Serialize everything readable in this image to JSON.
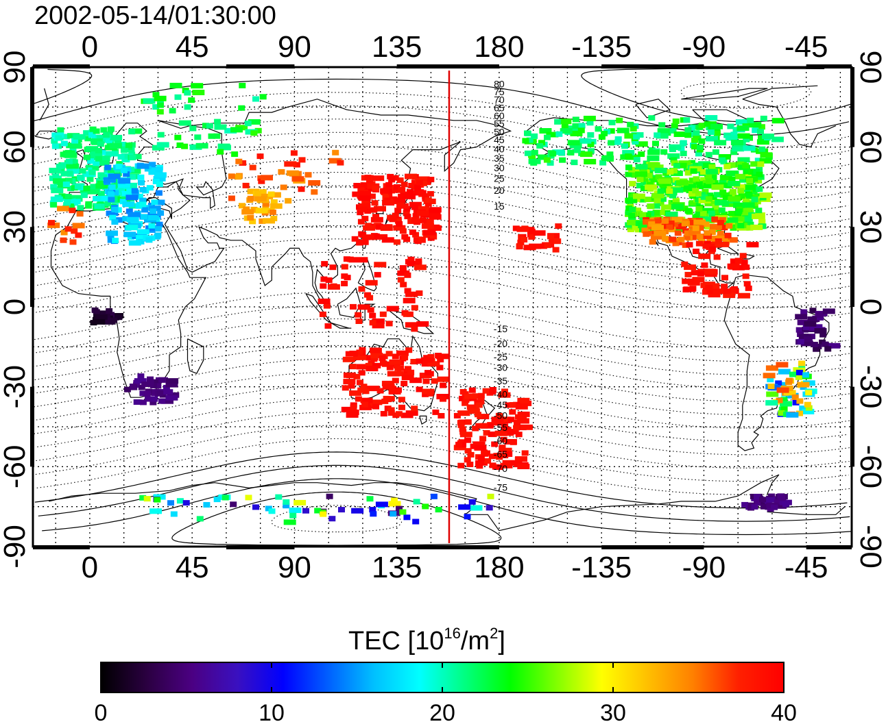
{
  "title": "2002-05-14/01:30:00",
  "map": {
    "top_lon_ticks": [
      "0",
      "45",
      "90",
      "135",
      "180",
      "-135",
      "-90",
      "-45"
    ],
    "bottom_lon_ticks": [
      "0",
      "45",
      "90",
      "135",
      "180",
      "-135",
      "-90",
      "-45"
    ],
    "left_lat_ticks": [
      "90",
      "60",
      "30",
      "0",
      "-30",
      "-60",
      "-90"
    ],
    "right_lat_ticks": [
      "90",
      "60",
      "30",
      "0",
      "-30",
      "-60",
      "-90"
    ],
    "lon_range": [
      -25,
      335
    ],
    "lat_range": [
      -90,
      90
    ],
    "magnetic_lat_labels_north": [
      "80",
      "75",
      "70",
      "65",
      "60",
      "55",
      "50",
      "45",
      "40",
      "35",
      "30",
      "25",
      "20",
      "15"
    ],
    "magnetic_lat_labels_south": [
      "-15",
      "-20",
      "-25",
      "-30",
      "-35",
      "-40",
      "-45",
      "-50",
      "-55",
      "-60",
      "-65",
      "-70",
      "-75"
    ],
    "reference_meridian_lon": 158,
    "reference_meridian_color": "#e00000"
  },
  "colorbar": {
    "title_main": "TEC  [10",
    "title_sup1": "16",
    "title_mid": "/m",
    "title_sup2": "2",
    "title_end": "]",
    "ticks": [
      "0",
      "10",
      "20",
      "30",
      "40"
    ],
    "range": [
      0,
      40
    ],
    "colormap": [
      "#000000",
      "#2a0040",
      "#4b0082",
      "#3a10c0",
      "#0000ff",
      "#0060ff",
      "#00c0ff",
      "#00ffff",
      "#00ff80",
      "#00ff00",
      "#80ff00",
      "#ffff00",
      "#ffc000",
      "#ff8000",
      "#ff2000",
      "#ff0000"
    ]
  }
}
